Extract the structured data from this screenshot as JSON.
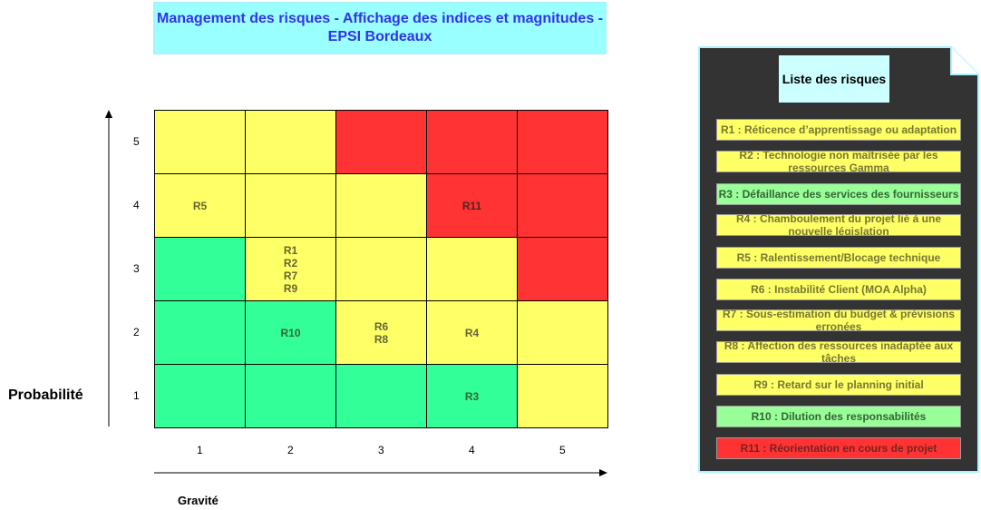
{
  "title": "Management des risques - Affichage des indices et magnitudes - EPSI Bordeaux",
  "colors": {
    "red": "#ff3333",
    "yellow": "#ffff66",
    "green": "#33ff99"
  },
  "matrix": {
    "rows": [
      {
        "probabilite": "5",
        "cells": [
          {
            "color": "yellow",
            "text": ""
          },
          {
            "color": "yellow",
            "text": ""
          },
          {
            "color": "red",
            "text": ""
          },
          {
            "color": "red",
            "text": ""
          },
          {
            "color": "red",
            "text": ""
          }
        ]
      },
      {
        "probabilite": "4",
        "cells": [
          {
            "color": "yellow",
            "text": "R5"
          },
          {
            "color": "yellow",
            "text": ""
          },
          {
            "color": "yellow",
            "text": ""
          },
          {
            "color": "red",
            "text": "R11"
          },
          {
            "color": "red",
            "text": ""
          }
        ]
      },
      {
        "probabilite": "3",
        "cells": [
          {
            "color": "green",
            "text": ""
          },
          {
            "color": "yellow",
            "text": "R1\nR2\nR7\nR9"
          },
          {
            "color": "yellow",
            "text": ""
          },
          {
            "color": "yellow",
            "text": ""
          },
          {
            "color": "red",
            "text": ""
          }
        ]
      },
      {
        "probabilite": "2",
        "cells": [
          {
            "color": "green",
            "text": ""
          },
          {
            "color": "green",
            "text": "R10"
          },
          {
            "color": "yellow",
            "text": "R6\nR8"
          },
          {
            "color": "yellow",
            "text": "R4"
          },
          {
            "color": "yellow",
            "text": ""
          }
        ]
      },
      {
        "probabilite": "1",
        "cells": [
          {
            "color": "green",
            "text": ""
          },
          {
            "color": "green",
            "text": ""
          },
          {
            "color": "green",
            "text": ""
          },
          {
            "color": "green",
            "text": "R3"
          },
          {
            "color": "yellow",
            "text": ""
          }
        ]
      }
    ],
    "gravite_ticks": [
      "1",
      "2",
      "3",
      "4",
      "5"
    ],
    "y_axis_label": "Probabilité",
    "x_axis_label": "Gravité"
  },
  "risk_list": {
    "title": "Liste des risques",
    "items": [
      {
        "label": "R1 : Réticence d’apprentissage ou adaptation",
        "color": "yellow"
      },
      {
        "label": "R2 : Technologie non maîtrisée par les ressources Gamma",
        "color": "yellow"
      },
      {
        "label": "R3 : Défaillance des services des fournisseurs",
        "color": "green"
      },
      {
        "label": "R4 : Chamboulement du projet lié à une nouvelle législation",
        "color": "yellow"
      },
      {
        "label": "R5 : Ralentissement/Blocage technique",
        "color": "yellow"
      },
      {
        "label": "R6 : Instabilité Client (MOA Alpha)",
        "color": "yellow"
      },
      {
        "label": "R7 : Sous-estimation du budget & prévisions erronées",
        "color": "yellow"
      },
      {
        "label": "R8 : Affection des ressources inadaptée aux tâches",
        "color": "yellow"
      },
      {
        "label": "R9 : Retard sur le planning initial",
        "color": "yellow"
      },
      {
        "label": "R10 : Dilution des responsabilités",
        "color": "green"
      },
      {
        "label": "R11 : Réorientation en cours de projet",
        "color": "red"
      }
    ]
  }
}
